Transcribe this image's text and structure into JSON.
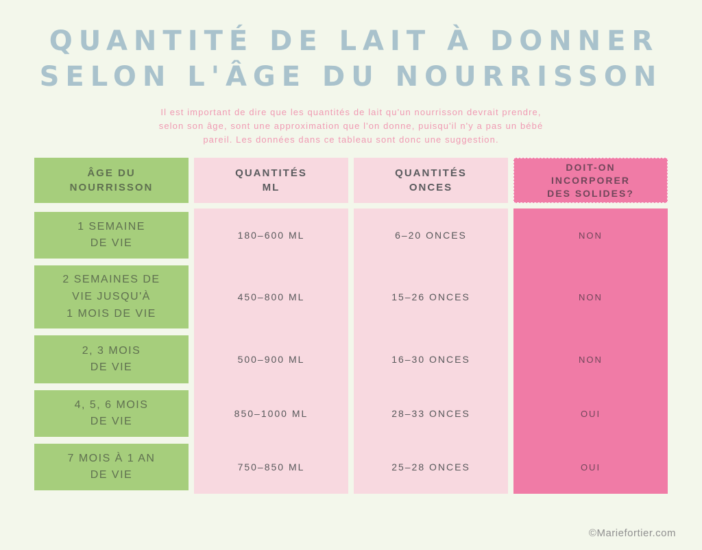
{
  "page": {
    "title": "QUANTITÉ DE LAIT À DONNER\nSELON L'ÂGE DU NOURRISSON",
    "subtitle": "Il est important de dire que les quantités de lait qu'un nourrisson devrait prendre,\nselon son âge, sont une approximation que l'on donne, puisqu'il n'y a pas un bébé\npareil. Les données dans ce tableau sont donc une suggestion.",
    "footer_credit": "©Mariefortier.com"
  },
  "table": {
    "headers_display": [
      "ÂGE DU\nNOURRISSON",
      "QUANTITÉS\nML",
      "QUANTITÉS\nONCES",
      "DOIT-ON\nINCORPORER\nDES SOLIDES?"
    ],
    "rows": [
      {
        "age": "1 SEMAINE\nDE VIE",
        "ml": "180–600 ML",
        "onces": "6–20 ONCES",
        "solides": "NON"
      },
      {
        "age": "2 SEMAINES DE\nVIE JUSQU'À\n1 MOIS DE VIE",
        "ml": "450–800 ML",
        "onces": "15–26 ONCES",
        "solides": "NON"
      },
      {
        "age": "2, 3 MOIS\nDE VIE",
        "ml": "500–900 ML",
        "onces": "16–30 ONCES",
        "solides": "NON"
      },
      {
        "age": "4, 5, 6 MOIS\nDE VIE",
        "ml": "850–1000 ML",
        "onces": "28–33 ONCES",
        "solides": "OUI"
      },
      {
        "age": "7 MOIS À 1 AN\nDE VIE",
        "ml": "750–850 ML",
        "onces": "25–28 ONCES",
        "solides": "OUI"
      }
    ]
  },
  "colors": {
    "background": "#f3f7eb",
    "title": "#a9c2cc",
    "subtitle_pink": "#f09ab3",
    "green": "#a6ce7c",
    "light_pink": "#f8d9e0",
    "dark_pink": "#f07ba6"
  },
  "chart_data": {
    "type": "table",
    "title": "QUANTITÉ DE LAIT À DONNER SELON L'ÂGE DU NOURRISSON",
    "columns": [
      "ÂGE DU NOURRISSON",
      "QUANTITÉS ML",
      "QUANTITÉS ONCES",
      "DOIT-ON INCORPORER DES SOLIDES?"
    ],
    "rows": [
      [
        "1 SEMAINE DE VIE",
        "180–600 ML",
        "6–20 ONCES",
        "NON"
      ],
      [
        "2 SEMAINES DE VIE JUSQU'À 1 MOIS DE VIE",
        "450–800 ML",
        "15–26 ONCES",
        "NON"
      ],
      [
        "2, 3 MOIS DE VIE",
        "500–900 ML",
        "16–30 ONCES",
        "NON"
      ],
      [
        "4, 5, 6 MOIS DE VIE",
        "850–1000 ML",
        "28–33 ONCES",
        "OUI"
      ],
      [
        "7 MOIS À 1 AN DE VIE",
        "750–850 ML",
        "25–28 ONCES",
        "OUI"
      ]
    ]
  }
}
